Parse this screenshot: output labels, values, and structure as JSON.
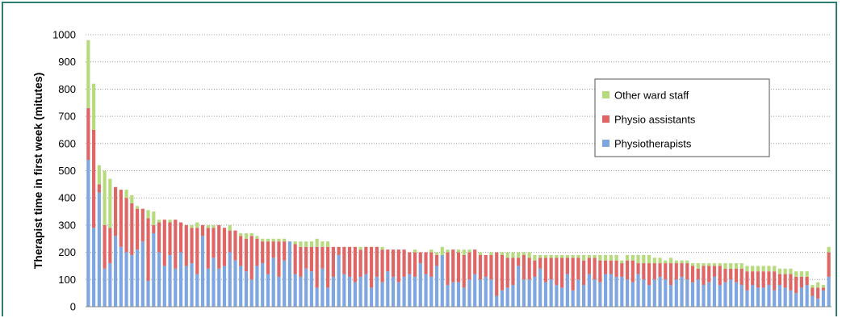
{
  "chart_data": {
    "type": "bar",
    "stacked": true,
    "title": "",
    "xlabel": "",
    "ylabel": "Therapist time in first week (mitutes)",
    "ylim": [
      0,
      1000
    ],
    "yticks": [
      0,
      100,
      200,
      300,
      400,
      500,
      600,
      700,
      800,
      900,
      1000
    ],
    "grid": "horizontal-dotted",
    "legend_position": "upper-right",
    "series": [
      {
        "name": "Physiotherapists",
        "color": "#7ea6e0",
        "values": [
          540,
          290,
          420,
          140,
          160,
          260,
          220,
          200,
          190,
          210,
          240,
          95,
          270,
          200,
          150,
          190,
          140,
          200,
          150,
          160,
          120,
          260,
          140,
          180,
          140,
          150,
          200,
          170,
          150,
          130,
          100,
          150,
          160,
          120,
          180,
          110,
          170,
          240,
          120,
          110,
          140,
          130,
          70,
          140,
          70,
          110,
          190,
          120,
          110,
          90,
          110,
          120,
          70,
          110,
          90,
          130,
          110,
          90,
          110,
          120,
          110,
          160,
          120,
          110,
          150,
          190,
          80,
          90,
          90,
          70,
          100,
          120,
          100,
          110,
          100,
          40,
          60,
          70,
          80,
          150,
          100,
          100,
          110,
          140,
          90,
          100,
          80,
          70,
          120,
          60,
          100,
          80,
          120,
          100,
          90,
          120,
          120,
          110,
          110,
          100,
          90,
          120,
          100,
          80,
          100,
          110,
          100,
          80,
          100,
          110,
          100,
          90,
          100,
          80,
          90,
          110,
          80,
          90,
          100,
          90,
          80,
          60,
          80,
          70,
          70,
          80,
          60,
          80,
          70,
          60,
          50,
          70,
          80,
          40,
          30,
          60,
          110
        ]
      },
      {
        "name": "Physio assistants",
        "color": "#e06666",
        "values": [
          190,
          360,
          30,
          160,
          130,
          180,
          210,
          200,
          190,
          150,
          120,
          230,
          30,
          110,
          170,
          120,
          180,
          110,
          150,
          130,
          170,
          40,
          150,
          110,
          160,
          140,
          80,
          110,
          110,
          120,
          160,
          100,
          80,
          120,
          60,
          130,
          70,
          0,
          110,
          110,
          80,
          90,
          150,
          80,
          150,
          110,
          30,
          100,
          110,
          130,
          100,
          100,
          150,
          110,
          120,
          80,
          100,
          120,
          100,
          80,
          90,
          40,
          80,
          90,
          40,
          0,
          120,
          120,
          110,
          120,
          100,
          90,
          90,
          80,
          90,
          160,
          130,
          110,
          100,
          30,
          90,
          80,
          60,
          40,
          90,
          80,
          100,
          110,
          60,
          120,
          80,
          90,
          60,
          80,
          80,
          50,
          50,
          60,
          50,
          70,
          80,
          40,
          60,
          80,
          60,
          50,
          60,
          80,
          60,
          50,
          60,
          60,
          40,
          70,
          60,
          40,
          70,
          50,
          40,
          50,
          60,
          70,
          50,
          60,
          60,
          50,
          70,
          40,
          50,
          60,
          60,
          40,
          30,
          30,
          40,
          10,
          90
        ]
      },
      {
        "name": "Other ward staff",
        "color": "#b6db7c",
        "values": [
          250,
          170,
          70,
          200,
          180,
          0,
          0,
          30,
          30,
          10,
          0,
          30,
          50,
          10,
          0,
          10,
          0,
          0,
          0,
          10,
          20,
          0,
          10,
          10,
          0,
          0,
          20,
          0,
          10,
          20,
          10,
          10,
          10,
          10,
          10,
          10,
          10,
          0,
          10,
          20,
          20,
          20,
          30,
          20,
          20,
          0,
          0,
          0,
          0,
          0,
          10,
          0,
          0,
          0,
          10,
          0,
          0,
          0,
          0,
          0,
          10,
          0,
          0,
          10,
          10,
          30,
          10,
          0,
          10,
          20,
          10,
          0,
          10,
          0,
          10,
          0,
          10,
          20,
          20,
          20,
          10,
          20,
          20,
          10,
          10,
          10,
          10,
          10,
          10,
          10,
          10,
          20,
          10,
          10,
          20,
          20,
          20,
          20,
          10,
          20,
          20,
          30,
          30,
          30,
          20,
          20,
          10,
          20,
          10,
          10,
          10,
          10,
          20,
          10,
          10,
          10,
          10,
          20,
          20,
          20,
          20,
          20,
          20,
          20,
          20,
          20,
          20,
          20,
          20,
          20,
          20,
          20,
          20,
          10,
          20,
          10,
          20
        ]
      }
    ]
  }
}
